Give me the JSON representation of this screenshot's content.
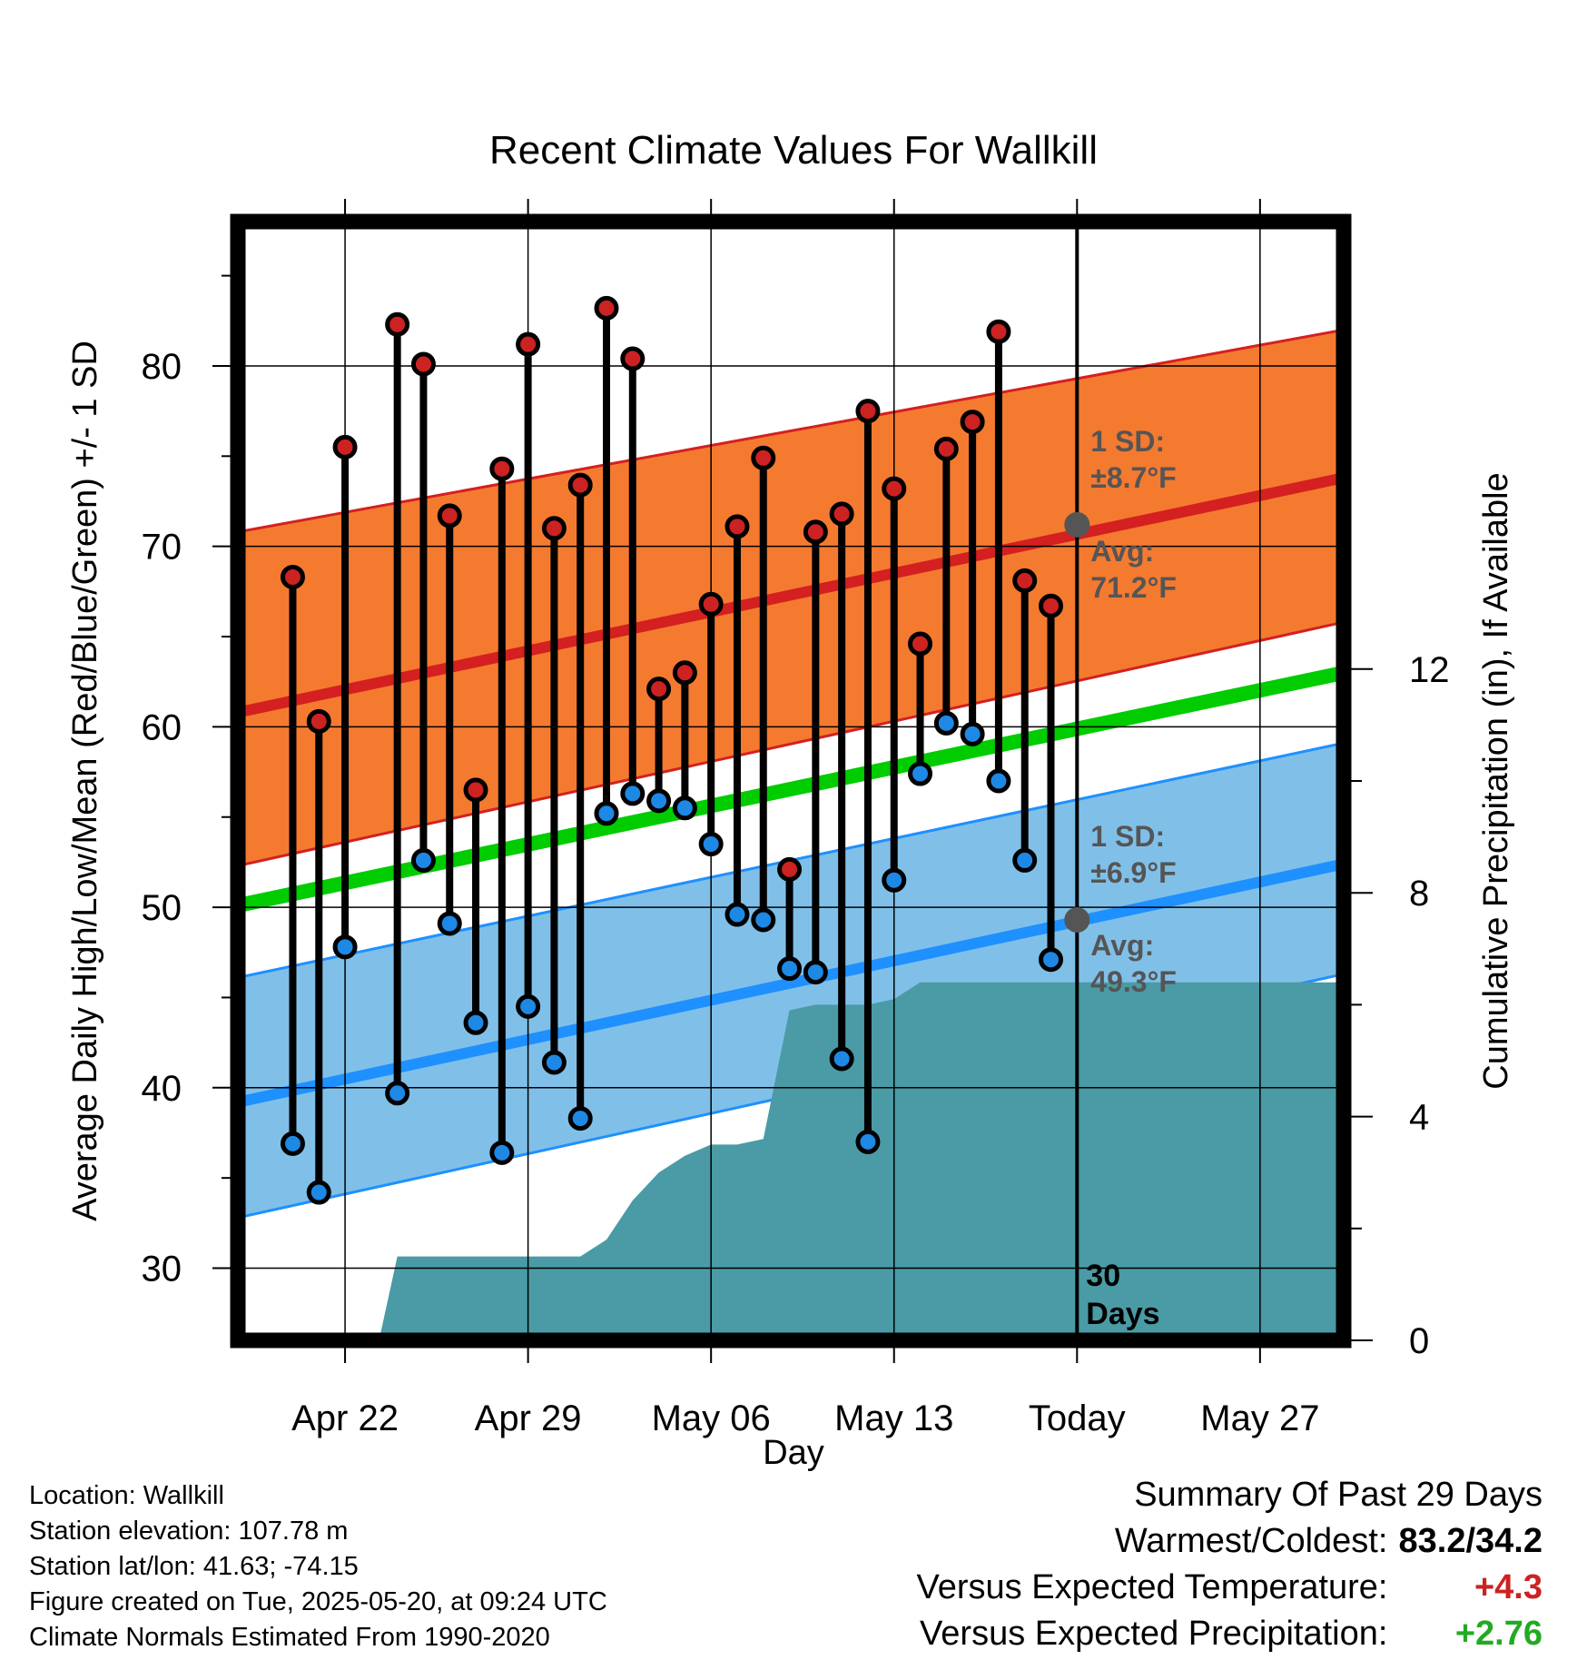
{
  "chart_data": {
    "type": "line",
    "title": "Recent Climate Values For Wallkill",
    "xlabel": "Day",
    "ylabel": "Average Daily High/Low/Mean (Red/Blue/Green) +/- 1 SD",
    "y2label": "Cumulative Precipitation (in), If Available",
    "ylim": [
      26,
      88
    ],
    "y2lim": [
      0,
      20
    ],
    "x_range_days": [
      -32.1,
      10.2
    ],
    "x_ticks": [
      {
        "day": -28,
        "label": "Apr 22"
      },
      {
        "day": -21,
        "label": "Apr 29"
      },
      {
        "day": -14,
        "label": "May 06"
      },
      {
        "day": -7,
        "label": "May 13"
      },
      {
        "day": 0,
        "label": "Today"
      },
      {
        "day": 7,
        "label": "May 27"
      }
    ],
    "y_ticks": [
      30,
      40,
      50,
      60,
      70,
      80
    ],
    "y2_ticks": [
      0,
      4,
      8,
      12
    ],
    "grid": true,
    "normals": {
      "high_avg": [
        [
          -32.1,
          60.8
        ],
        [
          10.2,
          73.8
        ]
      ],
      "high_sd_upper": [
        [
          -32.1,
          70.8
        ],
        [
          10.2,
          82.0
        ]
      ],
      "high_sd_lower": [
        [
          -32.1,
          52.3
        ],
        [
          10.2,
          65.8
        ]
      ],
      "mean_avg": [
        [
          -32.1,
          50.1
        ],
        [
          10.2,
          63.0
        ]
      ],
      "low_avg": [
        [
          -32.1,
          39.2
        ],
        [
          10.2,
          52.4
        ]
      ],
      "low_sd_upper": [
        [
          -32.1,
          46.1
        ],
        [
          10.2,
          59.1
        ]
      ],
      "low_sd_lower": [
        [
          -32.1,
          32.8
        ],
        [
          10.2,
          46.3
        ]
      ]
    },
    "series": [
      {
        "name": "High",
        "color": "#cc2222",
        "values": [
          [
            -30,
            68.3
          ],
          [
            -29,
            60.3
          ],
          [
            -28,
            75.5
          ],
          [
            -26,
            82.3
          ],
          [
            -25,
            80.1
          ],
          [
            -24,
            71.7
          ],
          [
            -23,
            56.5
          ],
          [
            -22,
            74.3
          ],
          [
            -21,
            81.2
          ],
          [
            -20,
            71.0
          ],
          [
            -19,
            73.4
          ],
          [
            -18,
            83.2
          ],
          [
            -17,
            80.4
          ],
          [
            -16,
            62.1
          ],
          [
            -15,
            63.0
          ],
          [
            -14,
            66.8
          ],
          [
            -13,
            71.1
          ],
          [
            -12,
            74.9
          ],
          [
            -11,
            52.1
          ],
          [
            -10,
            70.8
          ],
          [
            -9,
            71.8
          ],
          [
            -8,
            77.5
          ],
          [
            -7,
            73.2
          ],
          [
            -6,
            64.6
          ],
          [
            -5,
            75.4
          ],
          [
            -4,
            76.9
          ],
          [
            -3,
            81.9
          ],
          [
            -2,
            68.1
          ],
          [
            -1,
            66.7
          ]
        ]
      },
      {
        "name": "Low",
        "color": "#1e88e5",
        "values": [
          [
            -30,
            36.9
          ],
          [
            -29,
            34.2
          ],
          [
            -28,
            47.8
          ],
          [
            -26,
            39.7
          ],
          [
            -25,
            52.6
          ],
          [
            -24,
            49.1
          ],
          [
            -23,
            43.6
          ],
          [
            -22,
            36.4
          ],
          [
            -21,
            44.5
          ],
          [
            -20,
            41.4
          ],
          [
            -19,
            38.3
          ],
          [
            -18,
            55.2
          ],
          [
            -17,
            56.3
          ],
          [
            -16,
            55.9
          ],
          [
            -15,
            55.5
          ],
          [
            -14,
            53.5
          ],
          [
            -13,
            49.6
          ],
          [
            -12,
            49.3
          ],
          [
            -11,
            46.6
          ],
          [
            -10,
            46.4
          ],
          [
            -9,
            41.6
          ],
          [
            -8,
            37.0
          ],
          [
            -7,
            51.5
          ],
          [
            -6,
            57.4
          ],
          [
            -5,
            60.2
          ],
          [
            -4,
            59.6
          ],
          [
            -3,
            57.0
          ],
          [
            -2,
            52.6
          ],
          [
            -1,
            47.1
          ]
        ]
      },
      {
        "name": "Cumulative Precipitation",
        "color": "#4a9ba5",
        "values": [
          [
            -26.7,
            0
          ],
          [
            -26.0,
            1.5
          ],
          [
            -19.0,
            1.5
          ],
          [
            -18.0,
            1.8
          ],
          [
            -17.0,
            2.5
          ],
          [
            -16.0,
            3.0
          ],
          [
            -15.0,
            3.3
          ],
          [
            -14.0,
            3.5
          ],
          [
            -13.0,
            3.5
          ],
          [
            -12.0,
            3.6
          ],
          [
            -11.0,
            5.9
          ],
          [
            -10.0,
            6.0
          ],
          [
            -8.0,
            6.0
          ],
          [
            -7.0,
            6.1
          ],
          [
            -6.0,
            6.4
          ],
          [
            10.2,
            6.4
          ]
        ]
      }
    ],
    "annotations": {
      "high_sd": [
        "1 SD:",
        "±8.7°F"
      ],
      "high_avg": [
        "Avg:",
        "71.2°F"
      ],
      "low_sd": [
        "1 SD:",
        "±6.9°F"
      ],
      "low_avg": [
        "Avg:",
        "49.3°F"
      ],
      "today_avg_high": 71.2,
      "today_avg_low": 49.3,
      "days_label": [
        "30",
        "Days"
      ]
    },
    "colors": {
      "high_band": "#f47a30",
      "high_line": "#d42020",
      "mean_line": "#00cc00",
      "low_band": "#80c0e8",
      "low_line": "#1e90ff",
      "high_marker": "#cc2222",
      "low_marker": "#1e88e5",
      "precip": "#4a9ba5",
      "today_marker": "#555555"
    }
  },
  "footer": {
    "location": "Location: Wallkill",
    "elevation": "Station elevation: 107.78 m",
    "latlon": "Station lat/lon: 41.63; -74.15",
    "created": "Figure created on Tue, 2025-05-20, at 09:24 UTC",
    "normals": "Climate Normals Estimated From 1990-2020"
  },
  "summary": {
    "title": "Summary Of Past 29 Days",
    "warmest_label": "Warmest/Coldest:",
    "warmest_value": "83.2/34.2",
    "temp_label": "Versus Expected Temperature:",
    "temp_value": "+4.3",
    "temp_color": "#cc2222",
    "precip_label": "Versus Expected Precipitation:",
    "precip_value": "+2.76",
    "precip_color": "#22aa22"
  }
}
